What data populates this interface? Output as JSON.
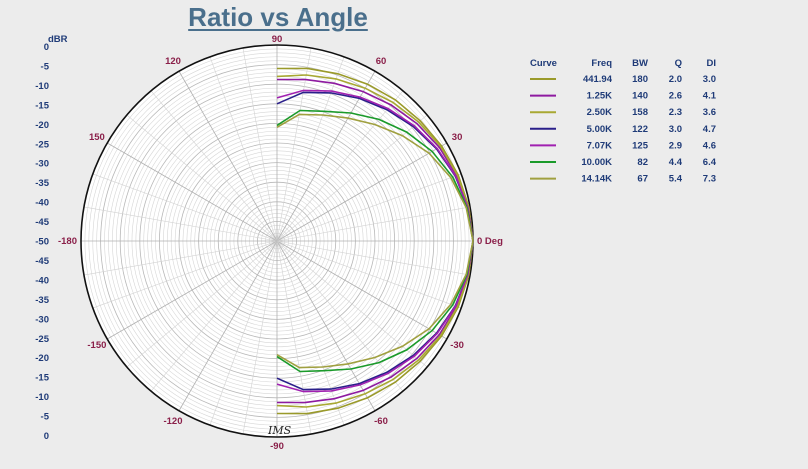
{
  "chart_data": {
    "type": "polar-line",
    "title": "Ratio vs Angle",
    "ylabel": "dBR",
    "r_range": [
      -50,
      0
    ],
    "r_ticks": [
      0,
      -5,
      -10,
      -15,
      -20,
      -25,
      -30,
      -35,
      -40,
      -45,
      -50,
      -45,
      -40,
      -35,
      -30,
      -25,
      -20,
      -15,
      -10,
      -5,
      0
    ],
    "angle_ticks": [
      {
        "angle": 0,
        "label": "0 Deg"
      },
      {
        "angle": 30,
        "label": "30"
      },
      {
        "angle": 60,
        "label": "60"
      },
      {
        "angle": 90,
        "label": "90"
      },
      {
        "angle": 120,
        "label": "120"
      },
      {
        "angle": 150,
        "label": "150"
      },
      {
        "angle": 180,
        "label": "-180"
      },
      {
        "angle": -150,
        "label": "-150"
      },
      {
        "angle": -120,
        "label": "-120"
      },
      {
        "angle": -90,
        "label": "-90"
      },
      {
        "angle": -60,
        "label": "-60"
      },
      {
        "angle": -30,
        "label": "-30"
      }
    ],
    "grid": true,
    "legend_columns": [
      "Curve",
      "Freq",
      "BW",
      "Q",
      "DI"
    ],
    "series": [
      {
        "freq": "441.94",
        "bw": "180",
        "q": "2.0",
        "di": "3.0",
        "color": "#9a9a2a",
        "points": [
          [
            0,
            0
          ],
          [
            10,
            -0.3
          ],
          [
            20,
            -0.8
          ],
          [
            30,
            -1.5
          ],
          [
            40,
            -2.3
          ],
          [
            50,
            -3.0
          ],
          [
            60,
            -3.8
          ],
          [
            70,
            -4.6
          ],
          [
            80,
            -5.3
          ],
          [
            90,
            -6.0
          ]
        ]
      },
      {
        "freq": "1.25K",
        "bw": "140",
        "q": "2.6",
        "di": "4.1",
        "color": "#8e1aa0",
        "points": [
          [
            0,
            0
          ],
          [
            10,
            -0.4
          ],
          [
            20,
            -1.2
          ],
          [
            30,
            -2.2
          ],
          [
            40,
            -3.4
          ],
          [
            50,
            -4.7
          ],
          [
            60,
            -6.0
          ],
          [
            70,
            -7.2
          ],
          [
            80,
            -8.2
          ],
          [
            90,
            -8.8
          ]
        ]
      },
      {
        "freq": "2.50K",
        "bw": "158",
        "q": "2.3",
        "di": "3.6",
        "color": "#a8a832",
        "points": [
          [
            0,
            0
          ],
          [
            10,
            -0.4
          ],
          [
            20,
            -1.0
          ],
          [
            30,
            -1.8
          ],
          [
            40,
            -2.8
          ],
          [
            50,
            -3.9
          ],
          [
            60,
            -5.0
          ],
          [
            70,
            -6.0
          ],
          [
            80,
            -7.0
          ],
          [
            90,
            -8.0
          ]
        ]
      },
      {
        "freq": "5.00K",
        "bw": "122",
        "q": "3.0",
        "di": "4.7",
        "color": "#2a1f8a",
        "points": [
          [
            0,
            0
          ],
          [
            10,
            -0.6
          ],
          [
            20,
            -1.6
          ],
          [
            30,
            -3.0
          ],
          [
            40,
            -4.6
          ],
          [
            50,
            -6.3
          ],
          [
            60,
            -8.0
          ],
          [
            70,
            -9.8
          ],
          [
            80,
            -11.5
          ],
          [
            90,
            -15.0
          ]
        ]
      },
      {
        "freq": "7.07K",
        "bw": "125",
        "q": "2.9",
        "di": "4.6",
        "color": "#a020b0",
        "points": [
          [
            0,
            0
          ],
          [
            10,
            -0.6
          ],
          [
            20,
            -1.5
          ],
          [
            30,
            -2.8
          ],
          [
            40,
            -4.3
          ],
          [
            50,
            -5.9
          ],
          [
            60,
            -7.6
          ],
          [
            70,
            -9.3
          ],
          [
            80,
            -11.0
          ],
          [
            90,
            -13.5
          ]
        ]
      },
      {
        "freq": "10.00K",
        "bw": "82",
        "q": "4.4",
        "di": "6.4",
        "color": "#1a9a2a",
        "points": [
          [
            0,
            0
          ],
          [
            10,
            -0.8
          ],
          [
            20,
            -2.3
          ],
          [
            30,
            -4.3
          ],
          [
            40,
            -6.8
          ],
          [
            50,
            -9.5
          ],
          [
            60,
            -12.3
          ],
          [
            70,
            -14.8
          ],
          [
            80,
            -16.2
          ],
          [
            90,
            -20.5
          ]
        ]
      },
      {
        "freq": "14.14K",
        "bw": "67",
        "q": "5.4",
        "di": "7.3",
        "color": "#a0a040",
        "points": [
          [
            0,
            0
          ],
          [
            10,
            -1.0
          ],
          [
            20,
            -2.8
          ],
          [
            30,
            -5.2
          ],
          [
            40,
            -8.2
          ],
          [
            50,
            -11.2
          ],
          [
            60,
            -13.8
          ],
          [
            70,
            -15.8
          ],
          [
            80,
            -17.2
          ],
          [
            90,
            -21.0
          ]
        ]
      }
    ]
  },
  "signature": "IMS"
}
